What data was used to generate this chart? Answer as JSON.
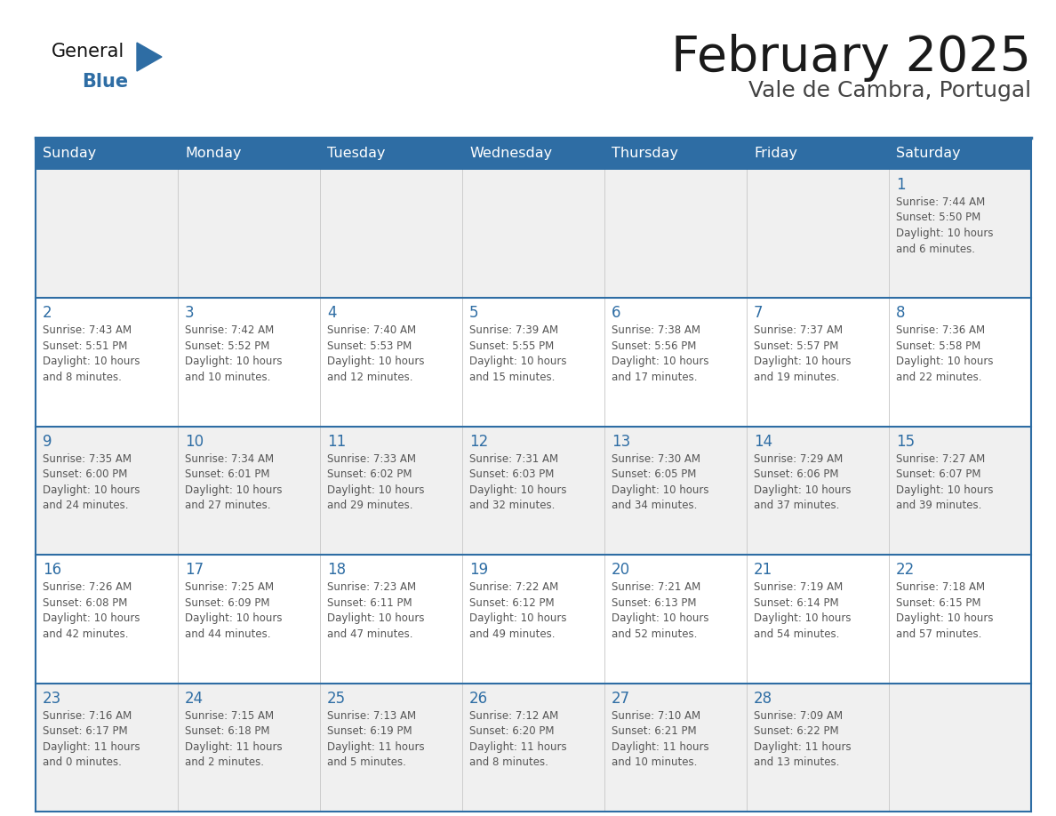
{
  "title": "February 2025",
  "subtitle": "Vale de Cambra, Portugal",
  "days_of_week": [
    "Sunday",
    "Monday",
    "Tuesday",
    "Wednesday",
    "Thursday",
    "Friday",
    "Saturday"
  ],
  "header_bg_color": "#2E6DA4",
  "header_text_color": "#FFFFFF",
  "cell_bg_color_odd": "#FFFFFF",
  "cell_bg_color_even": "#F0F0F0",
  "border_color": "#2E6DA4",
  "row_sep_color": "#2E6DA4",
  "day_number_color": "#2E6DA4",
  "cell_text_color": "#555555",
  "title_color": "#1a1a1a",
  "subtitle_color": "#444444",
  "logo_general_color": "#111111",
  "logo_blue_color": "#2E6DA4",
  "calendar_data": [
    [
      null,
      null,
      null,
      null,
      null,
      null,
      {
        "day": 1,
        "sunrise": "7:44 AM",
        "sunset": "5:50 PM",
        "daylight_hours": 10,
        "daylight_minutes": 6
      }
    ],
    [
      {
        "day": 2,
        "sunrise": "7:43 AM",
        "sunset": "5:51 PM",
        "daylight_hours": 10,
        "daylight_minutes": 8
      },
      {
        "day": 3,
        "sunrise": "7:42 AM",
        "sunset": "5:52 PM",
        "daylight_hours": 10,
        "daylight_minutes": 10
      },
      {
        "day": 4,
        "sunrise": "7:40 AM",
        "sunset": "5:53 PM",
        "daylight_hours": 10,
        "daylight_minutes": 12
      },
      {
        "day": 5,
        "sunrise": "7:39 AM",
        "sunset": "5:55 PM",
        "daylight_hours": 10,
        "daylight_minutes": 15
      },
      {
        "day": 6,
        "sunrise": "7:38 AM",
        "sunset": "5:56 PM",
        "daylight_hours": 10,
        "daylight_minutes": 17
      },
      {
        "day": 7,
        "sunrise": "7:37 AM",
        "sunset": "5:57 PM",
        "daylight_hours": 10,
        "daylight_minutes": 19
      },
      {
        "day": 8,
        "sunrise": "7:36 AM",
        "sunset": "5:58 PM",
        "daylight_hours": 10,
        "daylight_minutes": 22
      }
    ],
    [
      {
        "day": 9,
        "sunrise": "7:35 AM",
        "sunset": "6:00 PM",
        "daylight_hours": 10,
        "daylight_minutes": 24
      },
      {
        "day": 10,
        "sunrise": "7:34 AM",
        "sunset": "6:01 PM",
        "daylight_hours": 10,
        "daylight_minutes": 27
      },
      {
        "day": 11,
        "sunrise": "7:33 AM",
        "sunset": "6:02 PM",
        "daylight_hours": 10,
        "daylight_minutes": 29
      },
      {
        "day": 12,
        "sunrise": "7:31 AM",
        "sunset": "6:03 PM",
        "daylight_hours": 10,
        "daylight_minutes": 32
      },
      {
        "day": 13,
        "sunrise": "7:30 AM",
        "sunset": "6:05 PM",
        "daylight_hours": 10,
        "daylight_minutes": 34
      },
      {
        "day": 14,
        "sunrise": "7:29 AM",
        "sunset": "6:06 PM",
        "daylight_hours": 10,
        "daylight_minutes": 37
      },
      {
        "day": 15,
        "sunrise": "7:27 AM",
        "sunset": "6:07 PM",
        "daylight_hours": 10,
        "daylight_minutes": 39
      }
    ],
    [
      {
        "day": 16,
        "sunrise": "7:26 AM",
        "sunset": "6:08 PM",
        "daylight_hours": 10,
        "daylight_minutes": 42
      },
      {
        "day": 17,
        "sunrise": "7:25 AM",
        "sunset": "6:09 PM",
        "daylight_hours": 10,
        "daylight_minutes": 44
      },
      {
        "day": 18,
        "sunrise": "7:23 AM",
        "sunset": "6:11 PM",
        "daylight_hours": 10,
        "daylight_minutes": 47
      },
      {
        "day": 19,
        "sunrise": "7:22 AM",
        "sunset": "6:12 PM",
        "daylight_hours": 10,
        "daylight_minutes": 49
      },
      {
        "day": 20,
        "sunrise": "7:21 AM",
        "sunset": "6:13 PM",
        "daylight_hours": 10,
        "daylight_minutes": 52
      },
      {
        "day": 21,
        "sunrise": "7:19 AM",
        "sunset": "6:14 PM",
        "daylight_hours": 10,
        "daylight_minutes": 54
      },
      {
        "day": 22,
        "sunrise": "7:18 AM",
        "sunset": "6:15 PM",
        "daylight_hours": 10,
        "daylight_minutes": 57
      }
    ],
    [
      {
        "day": 23,
        "sunrise": "7:16 AM",
        "sunset": "6:17 PM",
        "daylight_hours": 11,
        "daylight_minutes": 0
      },
      {
        "day": 24,
        "sunrise": "7:15 AM",
        "sunset": "6:18 PM",
        "daylight_hours": 11,
        "daylight_minutes": 2
      },
      {
        "day": 25,
        "sunrise": "7:13 AM",
        "sunset": "6:19 PM",
        "daylight_hours": 11,
        "daylight_minutes": 5
      },
      {
        "day": 26,
        "sunrise": "7:12 AM",
        "sunset": "6:20 PM",
        "daylight_hours": 11,
        "daylight_minutes": 8
      },
      {
        "day": 27,
        "sunrise": "7:10 AM",
        "sunset": "6:21 PM",
        "daylight_hours": 11,
        "daylight_minutes": 10
      },
      {
        "day": 28,
        "sunrise": "7:09 AM",
        "sunset": "6:22 PM",
        "daylight_hours": 11,
        "daylight_minutes": 13
      },
      null
    ]
  ]
}
